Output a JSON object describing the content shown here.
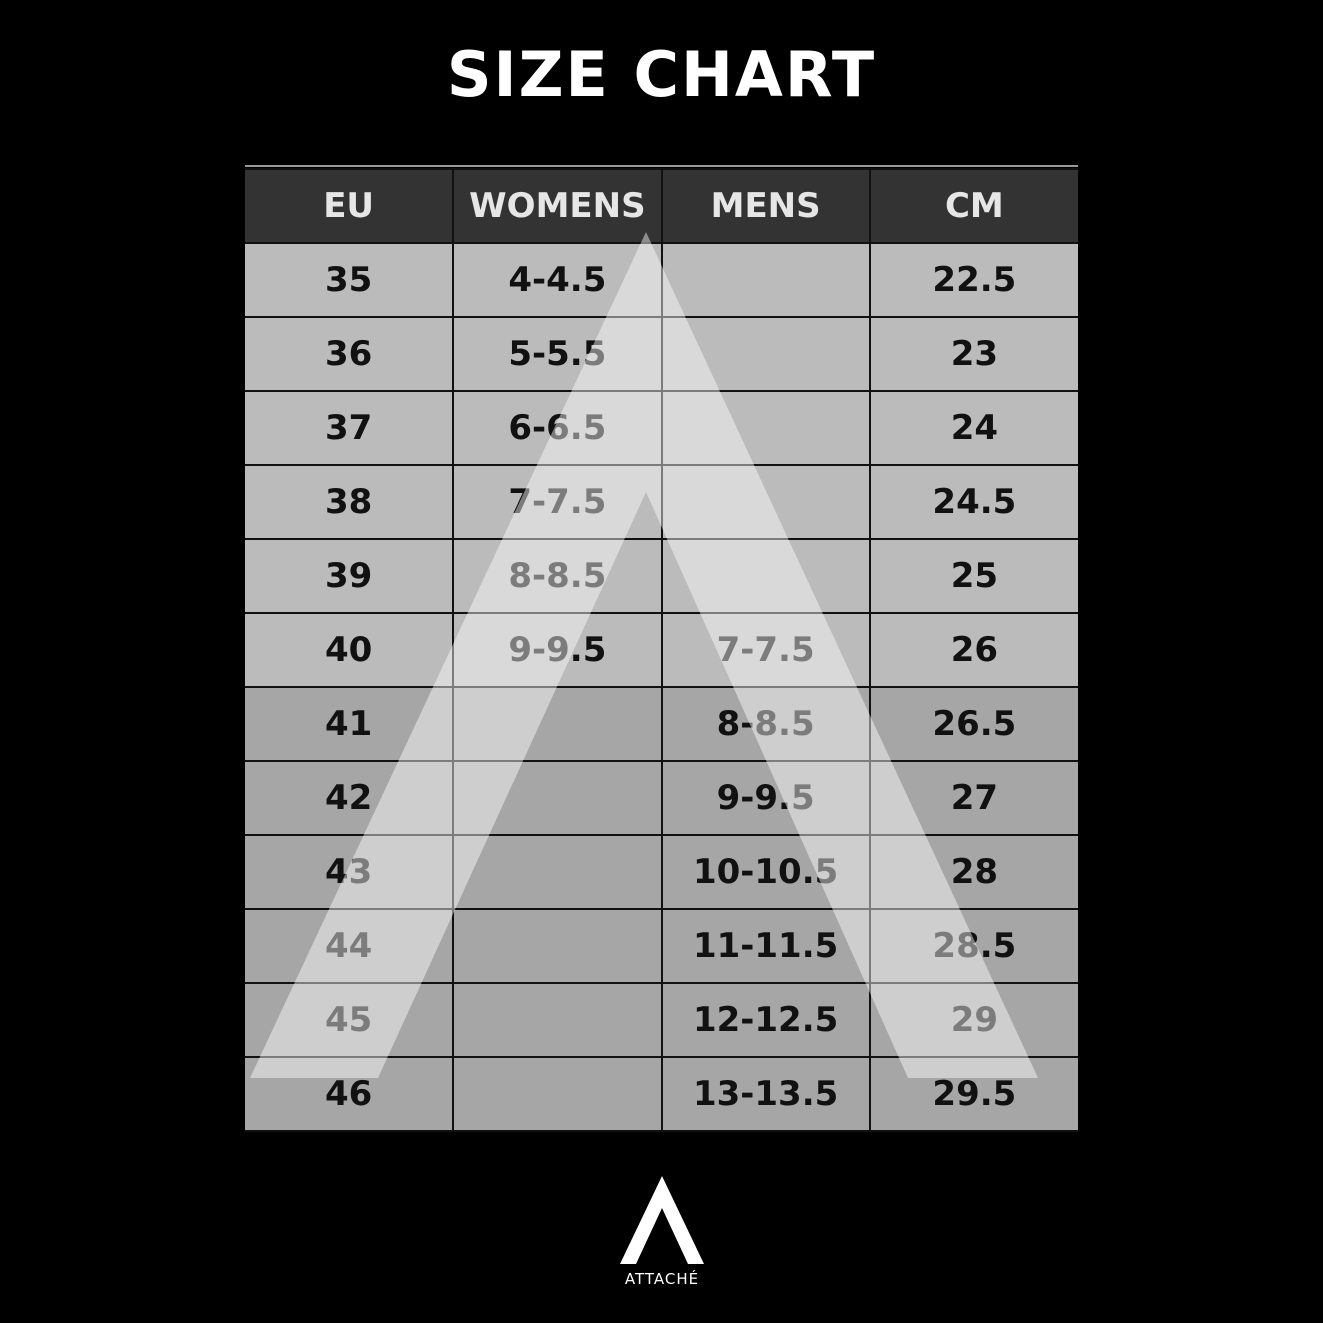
{
  "title": "SIZE CHART",
  "table": {
    "headers": [
      "EU",
      "WOMENS",
      "MENS",
      "CM"
    ],
    "rows": [
      [
        "35",
        "4-4.5",
        "",
        "22.5"
      ],
      [
        "36",
        "5-5.5",
        "",
        "23"
      ],
      [
        "37",
        "6-6.5",
        "",
        "24"
      ],
      [
        "38",
        "7-7.5",
        "",
        "24.5"
      ],
      [
        "39",
        "8-8.5",
        "",
        "25"
      ],
      [
        "40",
        "9-9.5",
        "7-7.5",
        "26"
      ],
      [
        "41",
        "",
        "8-8.5",
        "26.5"
      ],
      [
        "42",
        "",
        "9-9.5",
        "27"
      ],
      [
        "43",
        "",
        "10-10.5",
        "28"
      ],
      [
        "44",
        "",
        "11-11.5",
        "28.5"
      ],
      [
        "45",
        "",
        "12-12.5",
        "29"
      ],
      [
        "46",
        "",
        "13-13.5",
        "29.5"
      ]
    ]
  },
  "logo": {
    "text": "ATTACHÉ",
    "icon": "attache-triangle-logo"
  },
  "colors": {
    "background": "#000000",
    "header": "#333333",
    "row_light": "#bbbbbb",
    "row_dark": "#a6a6a6"
  }
}
